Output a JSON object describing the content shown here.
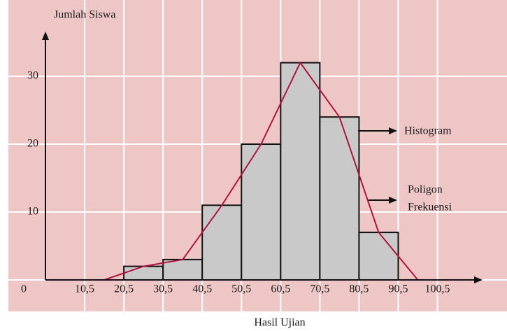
{
  "chart_data": {
    "type": "histogram",
    "y_label": "Jumlah Siswa",
    "x_label": "Hasil Ujian",
    "bins": [
      20.5,
      30.5,
      40.5,
      50.5,
      60.5,
      70.5,
      80.5,
      90.5
    ],
    "counts": [
      2,
      3,
      11,
      20,
      32,
      24,
      7
    ],
    "color": "#c9c9c9",
    "polygon": {
      "x": [
        15.5,
        25.5,
        35.5,
        45.5,
        55.5,
        65.5,
        75.5,
        85.5,
        95.5
      ],
      "values": [
        0,
        2,
        3,
        11,
        20,
        32,
        24,
        7,
        0
      ],
      "color": "#b3123f"
    },
    "xlim": [
      0.5,
      112
    ],
    "ylim": [
      0,
      36.6
    ],
    "xticks": [
      {
        "value": 10.5,
        "label": "10,5"
      },
      {
        "value": 20.5,
        "label": "20,5"
      },
      {
        "value": 30.5,
        "label": "30,5"
      },
      {
        "value": 40.5,
        "label": "40,5"
      },
      {
        "value": 50.5,
        "label": "50,5"
      },
      {
        "value": 60.5,
        "label": "60,5"
      },
      {
        "value": 70.5,
        "label": "70,5"
      },
      {
        "value": 80.5,
        "label": "80,5"
      },
      {
        "value": 90.5,
        "label": "90,5"
      },
      {
        "value": 100.5,
        "label": "100,5"
      }
    ],
    "yticks": [
      0,
      10,
      20,
      30
    ],
    "grid": true,
    "annotations": [
      "Histogram",
      "Poligon",
      "Frekuensi"
    ]
  }
}
